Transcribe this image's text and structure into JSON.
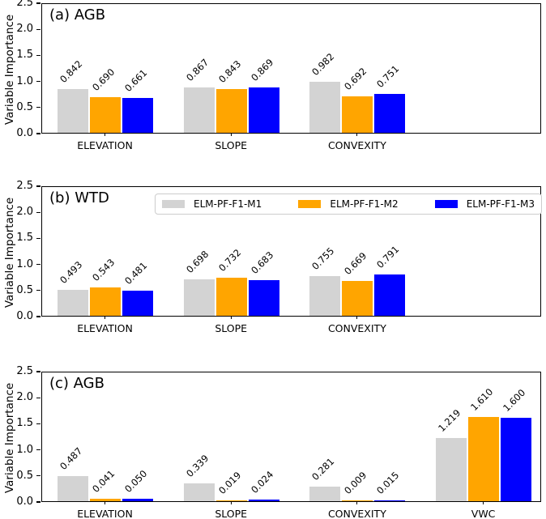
{
  "figure": {
    "background": "#ffffff",
    "axis_color": "#000000",
    "legend": {
      "border_color": "#cccccc",
      "items": [
        {
          "label": "ELM-PF-F1-M1",
          "color": "#d3d3d3"
        },
        {
          "label": "ELM-PF-F1-M2",
          "color": "#ffa500"
        },
        {
          "label": "ELM-PF-F1-M3",
          "color": "#0000ff"
        }
      ]
    }
  },
  "chart_data": [
    {
      "type": "bar",
      "title": "(a) AGB",
      "ylabel": "Variable Importance",
      "ylim": [
        0,
        2.5
      ],
      "yticks": [
        "0.0",
        "0.5",
        "1.0",
        "1.5",
        "2.0",
        "2.5"
      ],
      "grid": false,
      "categories": [
        "ELEVATION",
        "SLOPE",
        "CONVEXITY"
      ],
      "series": [
        {
          "name": "ELM-PF-F1-M1",
          "color": "#d3d3d3",
          "values": [
            0.842,
            0.867,
            0.982
          ]
        },
        {
          "name": "ELM-PF-F1-M2",
          "color": "#ffa500",
          "values": [
            0.69,
            0.843,
            0.692
          ]
        },
        {
          "name": "ELM-PF-F1-M3",
          "color": "#0000ff",
          "values": [
            0.661,
            0.869,
            0.751
          ]
        }
      ],
      "value_label_decimals": 3,
      "value_label_rotation": 45
    },
    {
      "type": "bar",
      "title": "(b) WTD",
      "ylabel": "Variable Importance",
      "ylim": [
        0,
        2.5
      ],
      "yticks": [
        "0.0",
        "0.5",
        "1.0",
        "1.5",
        "2.0",
        "2.5"
      ],
      "grid": false,
      "legend_position": "upper right",
      "categories": [
        "ELEVATION",
        "SLOPE",
        "CONVEXITY"
      ],
      "series": [
        {
          "name": "ELM-PF-F1-M1",
          "color": "#d3d3d3",
          "values": [
            0.493,
            0.698,
            0.755
          ]
        },
        {
          "name": "ELM-PF-F1-M2",
          "color": "#ffa500",
          "values": [
            0.543,
            0.732,
            0.669
          ]
        },
        {
          "name": "ELM-PF-F1-M3",
          "color": "#0000ff",
          "values": [
            0.481,
            0.683,
            0.791
          ]
        }
      ],
      "value_label_decimals": 3,
      "value_label_rotation": 45
    },
    {
      "type": "bar",
      "title": "(c) AGB",
      "ylabel": "Variable Importance",
      "ylim": [
        0,
        2.5
      ],
      "yticks": [
        "0.0",
        "0.5",
        "1.0",
        "1.5",
        "2.0",
        "2.5"
      ],
      "grid": false,
      "categories": [
        "ELEVATION",
        "SLOPE",
        "CONVEXITY",
        "VWC"
      ],
      "series": [
        {
          "name": "ELM-PF-F1-M1",
          "color": "#d3d3d3",
          "values": [
            0.487,
            0.339,
            0.281,
            1.219
          ]
        },
        {
          "name": "ELM-PF-F1-M2",
          "color": "#ffa500",
          "values": [
            0.041,
            0.019,
            0.009,
            1.61
          ]
        },
        {
          "name": "ELM-PF-F1-M3",
          "color": "#0000ff",
          "values": [
            0.05,
            0.024,
            0.015,
            1.6
          ]
        }
      ],
      "value_label_decimals": 3,
      "value_label_rotation": 45
    }
  ]
}
